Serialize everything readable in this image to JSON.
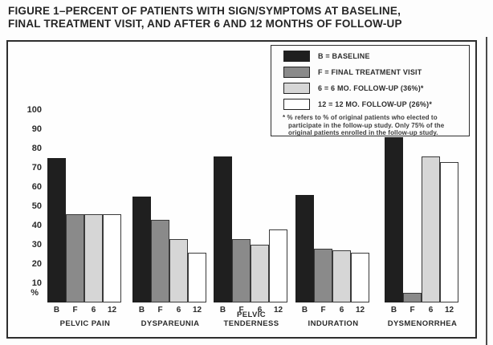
{
  "title": {
    "line1": "FIGURE 1–PERCENT OF PATIENTS WITH SIGN/SYMPTOMS AT BASELINE,",
    "line2": "FINAL TREATMENT VISIT, AND AFTER 6 AND 12 MONTHS OF FOLLOW-UP"
  },
  "legend": {
    "items": [
      {
        "key": "B",
        "label": "B = BASELINE",
        "color": "#1f1f1f"
      },
      {
        "key": "F",
        "label": "F = FINAL TREATMENT VISIT",
        "color": "#8a8a8a"
      },
      {
        "key": "6",
        "label": "6 = 6 MO. FOLLOW-UP (36%)*",
        "color": "#d6d6d6"
      },
      {
        "key": "12",
        "label": "12 = 12 MO. FOLLOW-UP (26%)*",
        "color": "#ffffff"
      }
    ],
    "footnote": "* % refers to % of original patients who elected to participate in the follow-up study. Only 75% of the original patients enrolled in the follow-up study."
  },
  "chart_data": {
    "type": "bar",
    "title": "FIGURE 1–PERCENT OF PATIENTS WITH SIGN/SYMPTOMS AT BASELINE, FINAL TREATMENT VISIT, AND AFTER 6 AND 12 MONTHS OF FOLLOW-UP",
    "categories": [
      "PELVIC PAIN",
      "DYSPAREUNIA",
      "PELVIC\nTENDERNESS",
      "INDURATION",
      "DYSMENORRHEA"
    ],
    "bar_labels": [
      "B",
      "F",
      "6",
      "12"
    ],
    "series": [
      {
        "name": "BASELINE",
        "color": "#1f1f1f",
        "values": [
          75,
          55,
          76,
          56,
          86
        ]
      },
      {
        "name": "FINAL TREATMENT VISIT",
        "color": "#8a8a8a",
        "values": [
          46,
          43,
          33,
          28,
          5
        ]
      },
      {
        "name": "6 MO. FOLLOW-UP",
        "color": "#d6d6d6",
        "values": [
          46,
          33,
          30,
          27,
          76
        ]
      },
      {
        "name": "12 MO. FOLLOW-UP",
        "color": "#ffffff",
        "values": [
          46,
          26,
          38,
          26,
          73
        ]
      }
    ],
    "ylabel": "%",
    "yticks": [
      100,
      90,
      80,
      70,
      60,
      50,
      40,
      30,
      20,
      10
    ],
    "ylim": [
      0,
      100
    ],
    "grid": false,
    "legend_position": "top-right"
  }
}
